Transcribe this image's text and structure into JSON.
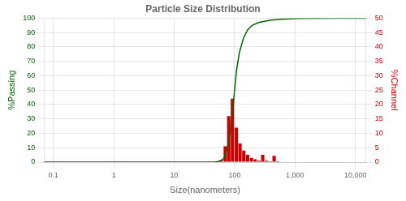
{
  "chart_data": {
    "type": "bar",
    "title": "Particle Size Distribution",
    "xlabel": "Size(nanometers)",
    "ylabel": "%Passing",
    "y2label": "%Channel",
    "log": "x",
    "xlim": [
      0.07,
      15000
    ],
    "xticks": [
      {
        "value": 0.1,
        "label": "0.1"
      },
      1,
      10,
      100,
      {
        "value": 1000,
        "label": "1,000"
      },
      {
        "value": 10000,
        "label": "10,000"
      }
    ],
    "ylim": [
      0,
      100
    ],
    "yticks": [
      0,
      10,
      20,
      30,
      40,
      50,
      60,
      70,
      80,
      90,
      100
    ],
    "y2lim": [
      0,
      50
    ],
    "y2ticks": [
      0,
      5,
      10,
      15,
      20,
      25,
      30,
      35,
      40,
      45,
      50
    ],
    "grid": true,
    "series": [
      {
        "type": "bar",
        "axis": "y2",
        "color": "#CC0000",
        "x": [
          52,
          60,
          70,
          80,
          92,
          107,
          123,
          142,
          164,
          190,
          219,
          253,
          292,
          338,
          390,
          451,
          521
        ],
        "values": [
          0.3,
          0.8,
          5.5,
          16.0,
          22.0,
          12.0,
          6.5,
          4.0,
          2.5,
          1.5,
          1.0,
          0.5,
          2.5,
          0.5,
          0.3,
          2.2,
          0.3
        ]
      },
      {
        "type": "line",
        "axis": "y",
        "color": "#006400",
        "x": [
          0.07,
          45,
          52,
          60,
          68,
          76,
          85,
          95,
          107,
          120,
          140,
          165,
          195,
          250,
          380,
          600,
          1200,
          5000,
          15000
        ],
        "values": [
          0,
          0,
          0.3,
          1,
          3,
          10,
          22,
          40,
          63,
          76,
          86,
          92,
          95,
          97,
          98.5,
          99.2,
          99.8,
          100,
          100
        ]
      }
    ]
  }
}
